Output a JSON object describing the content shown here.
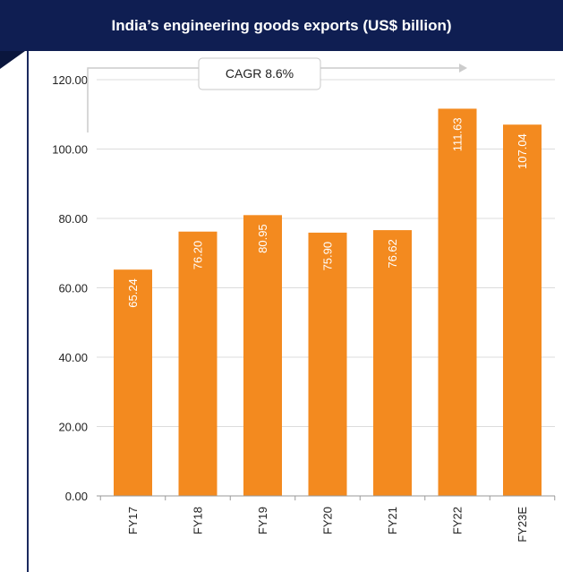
{
  "chart_data": {
    "type": "bar",
    "title": "India’s engineering goods exports (US$ billion)",
    "categories": [
      "FY17",
      "FY18",
      "FY19",
      "FY20",
      "FY21",
      "FY22",
      "FY23E"
    ],
    "values": [
      65.24,
      76.2,
      80.95,
      75.9,
      76.62,
      111.63,
      107.04
    ],
    "value_labels": [
      "65.24",
      "76.20",
      "80.95",
      "75.90",
      "76.62",
      "111.63",
      "107.04"
    ],
    "y_ticks": [
      0,
      20,
      40,
      60,
      80,
      100,
      120
    ],
    "y_tick_labels": [
      "0.00",
      "20.00",
      "40.00",
      "60.00",
      "80.00",
      "100.00",
      "120.00"
    ],
    "ylim": [
      0,
      120
    ],
    "xlabel": "",
    "ylabel": "",
    "grid": true,
    "annotation": "CAGR 8.6%"
  },
  "colors": {
    "header_bg": "#0f1e52",
    "bar": "#f38a1f",
    "grid": "#dcdcdc",
    "axis": "#9a9a9a",
    "arrow": "#cccccc"
  }
}
